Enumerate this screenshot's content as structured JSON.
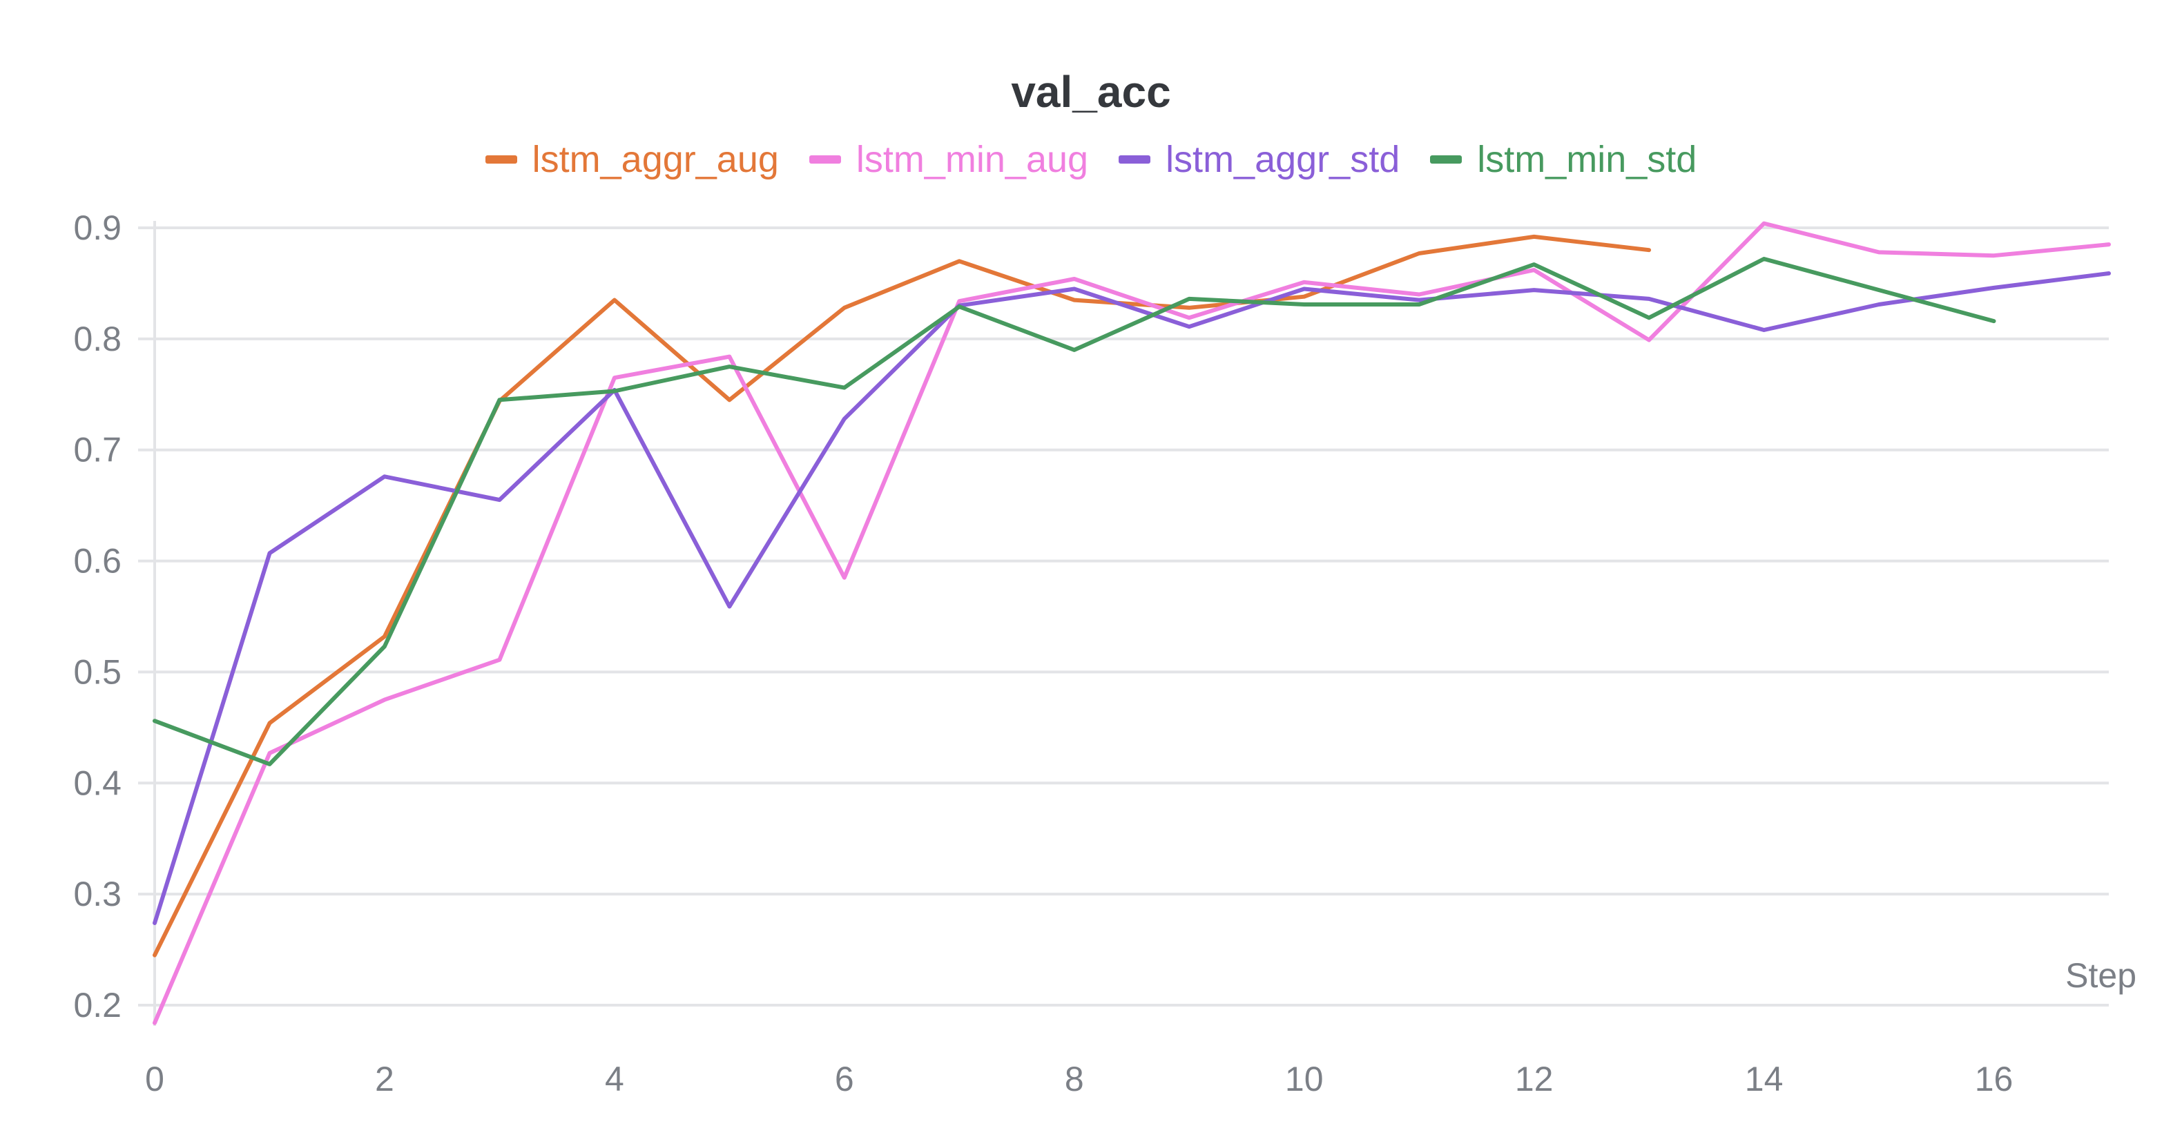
{
  "chart_data": {
    "type": "line",
    "title": "val_acc",
    "xlabel": "Step",
    "ylabel": "",
    "xlim": [
      0,
      17
    ],
    "ylim": [
      0.2,
      0.9
    ],
    "grid": true,
    "legend_position": "top-center",
    "x_ticks": [
      0,
      2,
      4,
      6,
      8,
      10,
      12,
      14,
      16
    ],
    "y_ticks": [
      0.2,
      0.3,
      0.4,
      0.5,
      0.6,
      0.7,
      0.8,
      0.9
    ],
    "series": [
      {
        "name": "lstm_aggr_aug",
        "color": "#e37738",
        "x": [
          0,
          1,
          2,
          3,
          4,
          5,
          6,
          7,
          8,
          9,
          10,
          11,
          12,
          13
        ],
        "values": [
          0.245,
          0.454,
          0.532,
          0.744,
          0.835,
          0.745,
          0.828,
          0.87,
          0.835,
          0.828,
          0.838,
          0.877,
          0.892,
          0.88
        ]
      },
      {
        "name": "lstm_min_aug",
        "color": "#f07fdf",
        "x": [
          0,
          1,
          2,
          3,
          4,
          5,
          6,
          7,
          8,
          9,
          10,
          11,
          12,
          13,
          14,
          15,
          16,
          17
        ],
        "values": [
          0.184,
          0.427,
          0.475,
          0.511,
          0.765,
          0.784,
          0.585,
          0.834,
          0.854,
          0.819,
          0.851,
          0.84,
          0.862,
          0.799,
          0.904,
          0.878,
          0.875,
          0.885
        ]
      },
      {
        "name": "lstm_aggr_std",
        "color": "#8a5fd8",
        "x": [
          0,
          1,
          2,
          3,
          4,
          5,
          6,
          7,
          8,
          9,
          10,
          11,
          12,
          13,
          14,
          15,
          16,
          17
        ],
        "values": [
          0.274,
          0.607,
          0.676,
          0.655,
          0.754,
          0.559,
          0.728,
          0.83,
          0.845,
          0.811,
          0.845,
          0.835,
          0.844,
          0.836,
          0.808,
          0.831,
          0.846,
          0.859
        ]
      },
      {
        "name": "lstm_min_std",
        "color": "#479a5f",
        "x": [
          0,
          1,
          2,
          3,
          4,
          5,
          6,
          7,
          8,
          9,
          10,
          11,
          12,
          13,
          14,
          15,
          16
        ],
        "values": [
          0.456,
          0.417,
          0.523,
          0.745,
          0.753,
          0.775,
          0.756,
          0.829,
          0.79,
          0.836,
          0.831,
          0.831,
          0.867,
          0.819,
          0.872,
          0.844,
          0.816
        ]
      }
    ]
  },
  "colors": {
    "grid": "#e3e4e7",
    "tick_text": "#7b7f86",
    "title": "#35383d"
  }
}
